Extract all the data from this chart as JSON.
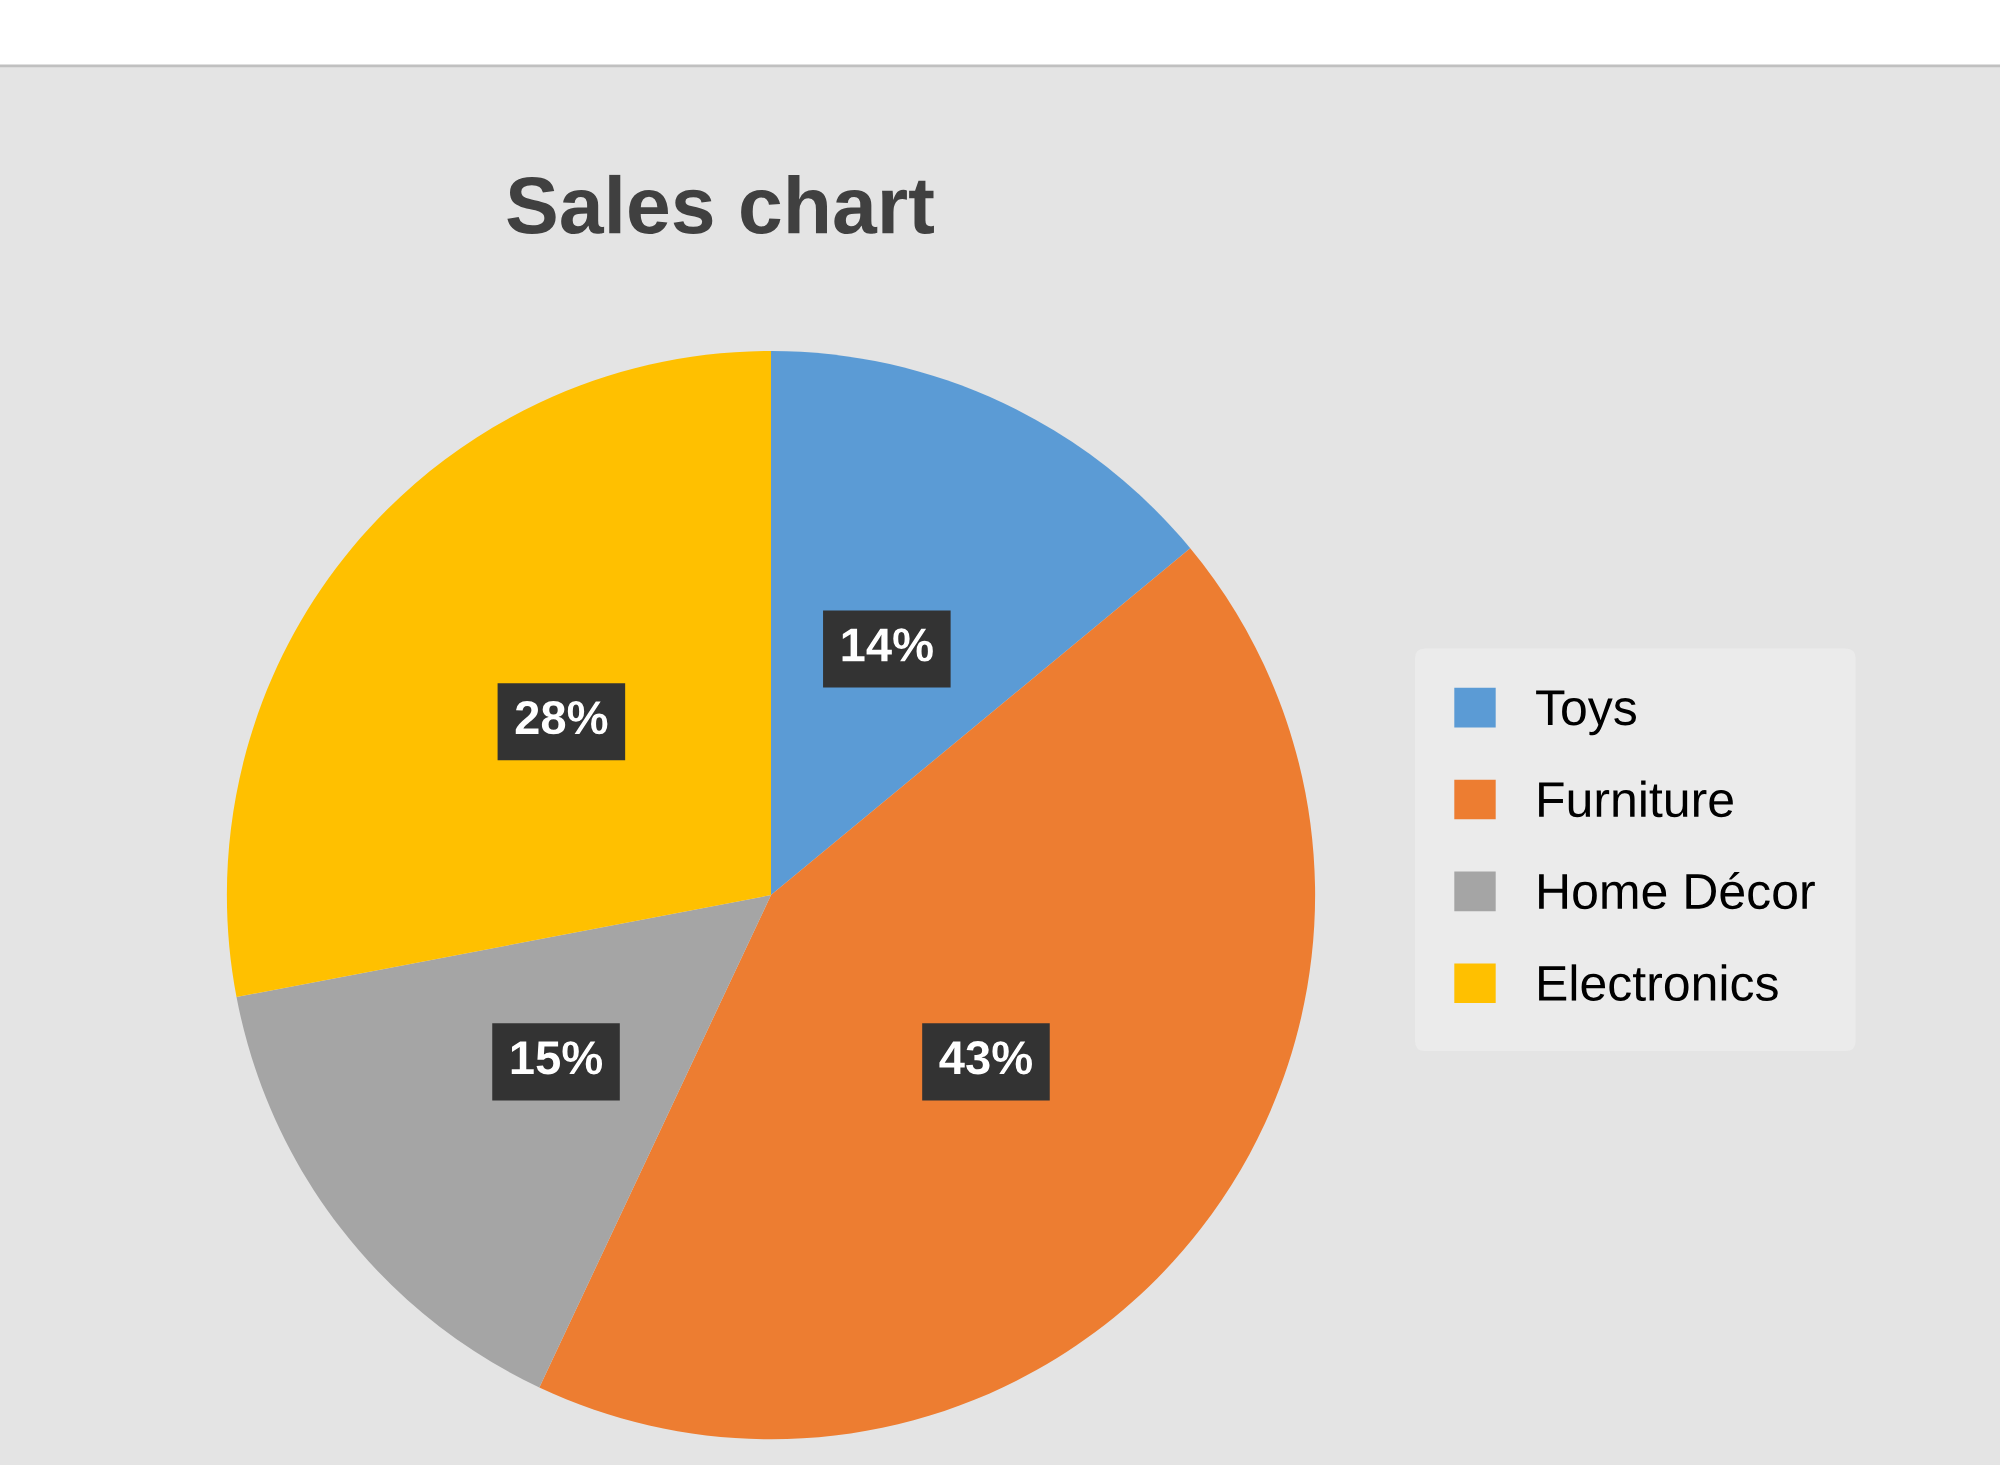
{
  "chart_data": {
    "type": "pie",
    "title": "Sales chart",
    "categories": [
      "Toys",
      "Furniture",
      "Home Décor",
      "Electronics"
    ],
    "values": [
      14,
      43,
      15,
      28
    ],
    "colors": [
      "#5b9bd5",
      "#ed7d31",
      "#a5a5a5",
      "#ffc000"
    ],
    "value_labels": [
      "14%",
      "43%",
      "15%",
      "28%"
    ],
    "legend": "right"
  }
}
